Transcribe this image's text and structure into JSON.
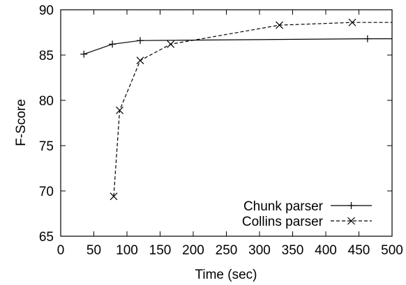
{
  "chart_data": {
    "type": "line",
    "xlabel": "Time (sec)",
    "ylabel": "F-Score",
    "xlim": [
      0,
      500
    ],
    "ylim": [
      65,
      90
    ],
    "xticks": [
      0,
      50,
      100,
      150,
      200,
      250,
      300,
      350,
      400,
      450,
      500
    ],
    "yticks": [
      65,
      70,
      75,
      80,
      85,
      90
    ],
    "grid": false,
    "legend_position": "bottom-right",
    "series": [
      {
        "name": "Chunk parser",
        "marker": "plus",
        "line_style": "solid",
        "x": [
          35,
          78,
          120,
          463
        ],
        "y": [
          85.1,
          86.2,
          86.6,
          86.8
        ],
        "extend_to_x": 500
      },
      {
        "name": "Collins parser",
        "marker": "cross",
        "line_style": "dashed",
        "x": [
          80,
          89,
          120,
          166,
          330,
          440
        ],
        "y": [
          69.4,
          78.9,
          84.4,
          86.2,
          88.3,
          88.6
        ],
        "extend_to_x": 500
      }
    ]
  }
}
